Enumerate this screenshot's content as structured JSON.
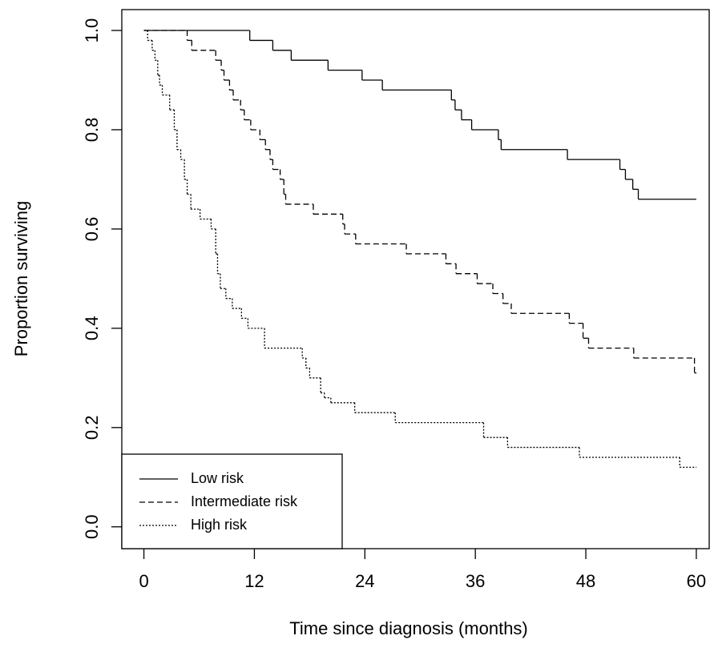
{
  "chart_data": {
    "type": "step",
    "xlabel": "Time since diagnosis (months)",
    "ylabel": "Proportion surviving",
    "xlim": [
      -2.4,
      61.4
    ],
    "ylim": [
      -0.044,
      1.042
    ],
    "xticks": [
      0,
      12,
      24,
      36,
      48,
      60
    ],
    "yticks": [
      {
        "value": 0,
        "label": "0.0"
      },
      0.2,
      0.4,
      0.6,
      0.8,
      {
        "value": 1,
        "label": "1.0"
      }
    ],
    "legend": "bottomleft",
    "series": [
      {
        "name": "Low risk",
        "color": "#000000",
        "linestyle": "solid",
        "x": [
          0,
          11.5,
          14,
          16,
          20,
          23.7,
          25.9,
          33.4,
          33.8,
          34.5,
          35.6,
          38.5,
          38.8,
          46,
          51.7,
          52.3,
          53.1,
          53.7,
          60
        ],
        "values": [
          1.0,
          0.98,
          0.96,
          0.94,
          0.92,
          0.9,
          0.88,
          0.86,
          0.84,
          0.82,
          0.8,
          0.78,
          0.76,
          0.74,
          0.72,
          0.7,
          0.68,
          0.66,
          0.66
        ]
      },
      {
        "name": "Intermediate risk",
        "color": "#000000",
        "linestyle": "dashed",
        "x": [
          0,
          4.7,
          5.2,
          7.8,
          8.4,
          8.7,
          9.3,
          9.7,
          10.5,
          10.9,
          11.6,
          12.6,
          13.2,
          13.7,
          14.0,
          14.8,
          15.2,
          15.4,
          18.4,
          21.6,
          21.8,
          23.0,
          28.5,
          32.8,
          33.9,
          36.2,
          37.9,
          39.0,
          39.9,
          46.2,
          47.7,
          48.3,
          53.2,
          59.8,
          60
        ],
        "values": [
          1.0,
          0.98,
          0.96,
          0.94,
          0.92,
          0.9,
          0.88,
          0.86,
          0.84,
          0.82,
          0.8,
          0.78,
          0.76,
          0.74,
          0.72,
          0.7,
          0.67,
          0.65,
          0.63,
          0.61,
          0.59,
          0.57,
          0.55,
          0.53,
          0.51,
          0.49,
          0.47,
          0.45,
          0.43,
          0.41,
          0.38,
          0.36,
          0.34,
          0.31,
          0.31
        ]
      },
      {
        "name": "High risk",
        "color": "#000000",
        "linestyle": "dotted",
        "x": [
          0,
          0.4,
          0.9,
          1.2,
          1.5,
          1.7,
          2.0,
          2.8,
          3.3,
          3.6,
          4.0,
          4.4,
          4.7,
          5.1,
          6.1,
          7.3,
          7.8,
          8.0,
          8.3,
          8.9,
          9.6,
          10.6,
          11.3,
          13.1,
          17.2,
          17.6,
          18.0,
          19.2,
          19.6,
          20.3,
          22.9,
          27.3,
          36.9,
          39.5,
          47.3,
          58.2,
          60
        ],
        "values": [
          1.0,
          0.98,
          0.96,
          0.94,
          0.91,
          0.89,
          0.87,
          0.84,
          0.8,
          0.76,
          0.74,
          0.7,
          0.67,
          0.64,
          0.62,
          0.6,
          0.55,
          0.51,
          0.48,
          0.46,
          0.44,
          0.42,
          0.4,
          0.36,
          0.34,
          0.32,
          0.3,
          0.27,
          0.26,
          0.25,
          0.23,
          0.21,
          0.18,
          0.16,
          0.14,
          0.12,
          0.12
        ]
      }
    ]
  }
}
